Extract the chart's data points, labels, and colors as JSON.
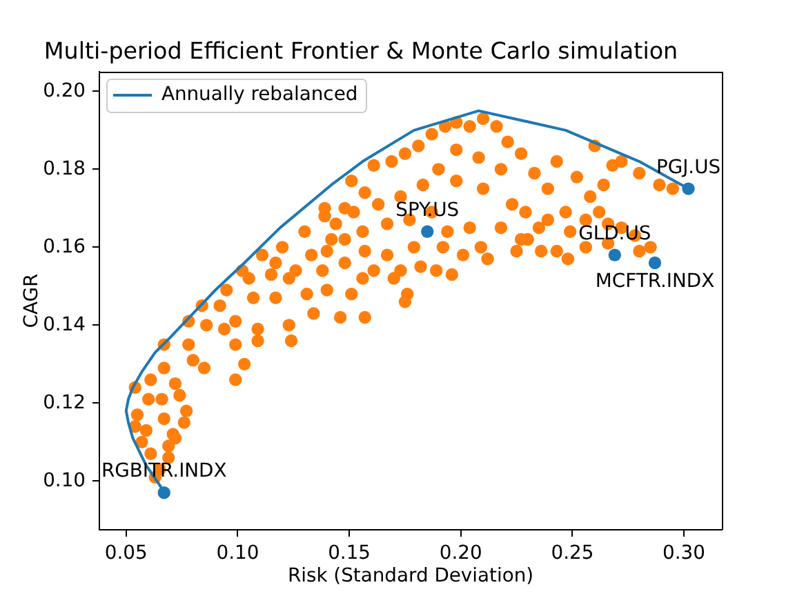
{
  "chart_data": {
    "type": "scatter",
    "title": "Multi-period Efficient Frontier & Monte Carlo simulation",
    "xlabel": "Risk (Standard Deviation)",
    "ylabel": "CAGR",
    "xlim": [
      0.038,
      0.317
    ],
    "ylim": [
      0.0875,
      0.205
    ],
    "xticks": [
      0.05,
      {
        "value": 0.1,
        "label": "0.10"
      },
      0.15,
      {
        "value": 0.2,
        "label": "0.20"
      },
      0.25,
      {
        "value": 0.3,
        "label": "0.30"
      }
    ],
    "yticks": [
      {
        "value": 0.1,
        "label": "0.10"
      },
      0.12,
      0.14,
      0.16,
      0.18,
      {
        "value": 0.2,
        "label": "0.20"
      }
    ],
    "legend": "top left",
    "marker": "circle",
    "series": [
      {
        "type": "scatter",
        "color": "#ff7f0e",
        "x": [
          0.063,
          0.065,
          0.061,
          0.069,
          0.069,
          0.057,
          0.072,
          0.071,
          0.059,
          0.054,
          0.076,
          0.067,
          0.055,
          0.077,
          0.06,
          0.066,
          0.074,
          0.054,
          0.072,
          0.061,
          0.099,
          0.085,
          0.067,
          0.103,
          0.08,
          0.067,
          0.078,
          0.099,
          0.109,
          0.124,
          0.094,
          0.109,
          0.086,
          0.123,
          0.078,
          0.099,
          0.134,
          0.084,
          0.092,
          0.107,
          0.117,
          0.131,
          0.14,
          0.115,
          0.105,
          0.123,
          0.095,
          0.102,
          0.111,
          0.12,
          0.13,
          0.139,
          0.148,
          0.133,
          0.142,
          0.126,
          0.148,
          0.117,
          0.139,
          0.151,
          0.157,
          0.161,
          0.169,
          0.175,
          0.181,
          0.187,
          0.193,
          0.198,
          0.204,
          0.21,
          0.216,
          0.221,
          0.227,
          0.233,
          0.239,
          0.243,
          0.252,
          0.258,
          0.26,
          0.264,
          0.268,
          0.272,
          0.28,
          0.289,
          0.295,
          0.218,
          0.208,
          0.198,
          0.19,
          0.183,
          0.173,
          0.163,
          0.152,
          0.144,
          0.198,
          0.21,
          0.223,
          0.229,
          0.239,
          0.247,
          0.256,
          0.262,
          0.266,
          0.272,
          0.278,
          0.249,
          0.235,
          0.227,
          0.218,
          0.204,
          0.194,
          0.187,
          0.177,
          0.167,
          0.156,
          0.148,
          0.14,
          0.138,
          0.146,
          0.157,
          0.151,
          0.175,
          0.176,
          0.17,
          0.156,
          0.161,
          0.173,
          0.182,
          0.189,
          0.196,
          0.201,
          0.212,
          0.209,
          0.225,
          0.23,
          0.236,
          0.243,
          0.248,
          0.256,
          0.266,
          0.28,
          0.285,
          0.179,
          0.167,
          0.192,
          0.157
        ],
        "values": [
          0.101,
          0.103,
          0.107,
          0.109,
          0.106,
          0.11,
          0.111,
          0.112,
          0.113,
          0.114,
          0.115,
          0.116,
          0.117,
          0.118,
          0.121,
          0.121,
          0.122,
          0.124,
          0.125,
          0.126,
          0.126,
          0.129,
          0.129,
          0.13,
          0.131,
          0.135,
          0.135,
          0.135,
          0.136,
          0.136,
          0.139,
          0.139,
          0.14,
          0.14,
          0.141,
          0.141,
          0.143,
          0.145,
          0.145,
          0.147,
          0.147,
          0.148,
          0.149,
          0.153,
          0.152,
          0.152,
          0.149,
          0.154,
          0.158,
          0.16,
          0.164,
          0.168,
          0.17,
          0.158,
          0.162,
          0.154,
          0.156,
          0.156,
          0.17,
          0.177,
          0.174,
          0.181,
          0.182,
          0.184,
          0.186,
          0.189,
          0.191,
          0.192,
          0.191,
          0.193,
          0.191,
          0.187,
          0.184,
          0.179,
          0.175,
          0.182,
          0.178,
          0.173,
          0.186,
          0.176,
          0.181,
          0.182,
          0.179,
          0.176,
          0.175,
          0.18,
          0.183,
          0.185,
          0.18,
          0.176,
          0.173,
          0.171,
          0.169,
          0.166,
          0.177,
          0.175,
          0.171,
          0.169,
          0.167,
          0.169,
          0.167,
          0.169,
          0.166,
          0.165,
          0.163,
          0.164,
          0.165,
          0.162,
          0.165,
          0.165,
          0.164,
          0.169,
          0.167,
          0.166,
          0.164,
          0.162,
          0.159,
          0.154,
          0.142,
          0.142,
          0.148,
          0.146,
          0.148,
          0.152,
          0.152,
          0.154,
          0.154,
          0.155,
          0.154,
          0.153,
          0.158,
          0.157,
          0.16,
          0.159,
          0.162,
          0.159,
          0.159,
          0.157,
          0.16,
          0.161,
          0.159,
          0.16,
          0.16,
          0.158,
          0.16,
          0.159
        ]
      },
      {
        "type": "line",
        "name": "Annually rebalanced",
        "color": "#1f77b4",
        "marker": "none",
        "x": [
          0.067,
          0.065,
          0.059,
          0.053,
          0.051,
          0.05,
          0.051,
          0.053,
          0.057,
          0.063,
          0.07,
          0.08,
          0.09,
          0.103,
          0.119,
          0.142,
          0.156,
          0.179,
          0.208,
          0.247,
          0.28,
          0.302
        ],
        "values": [
          0.097,
          0.099,
          0.104,
          0.111,
          0.115,
          0.118,
          0.121,
          0.124,
          0.128,
          0.133,
          0.137,
          0.143,
          0.149,
          0.156,
          0.165,
          0.176,
          0.182,
          0.19,
          0.195,
          0.19,
          0.182,
          0.175
        ]
      },
      {
        "type": "scatter",
        "color": "#1f77b4",
        "x": [
          0.067,
          0.185,
          0.269,
          0.287,
          0.302
        ],
        "values": [
          0.097,
          0.164,
          0.158,
          0.156,
          0.175
        ]
      }
    ],
    "annotations": [
      {
        "text": "RGBITR.INDX",
        "x": 0.067,
        "y": 0.097
      },
      {
        "text": "SPY.US",
        "x": 0.185,
        "y": 0.164
      },
      {
        "text": "GLD.US",
        "x": 0.269,
        "y": 0.158
      },
      {
        "text": "MCFTR.INDX",
        "x": 0.287,
        "y": 0.156
      },
      {
        "text": "PGJ.US",
        "x": 0.302,
        "y": 0.175
      }
    ]
  }
}
